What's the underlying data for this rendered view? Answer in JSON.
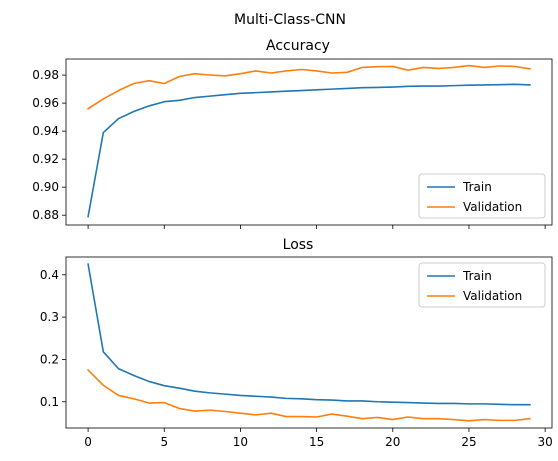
{
  "figure": {
    "suptitle": "Multi-Class-CNN"
  },
  "chart_data": [
    {
      "type": "line",
      "title": "Accuracy",
      "xlabel": "",
      "ylabel": "",
      "xlim": [
        -1.45,
        30.45
      ],
      "ylim": [
        0.873,
        0.9915
      ],
      "x": [
        0,
        1,
        2,
        3,
        4,
        5,
        6,
        7,
        8,
        9,
        10,
        11,
        12,
        13,
        14,
        15,
        16,
        17,
        18,
        19,
        20,
        21,
        22,
        23,
        24,
        25,
        26,
        27,
        28,
        29
      ],
      "xticks": [
        0,
        5,
        10,
        15,
        20,
        25,
        30
      ],
      "xtick_labels_visible": false,
      "yticks": [
        0.88,
        0.9,
        0.92,
        0.94,
        0.96,
        0.98
      ],
      "ytick_labels": [
        "0.88",
        "0.90",
        "0.92",
        "0.94",
        "0.96",
        "0.98"
      ],
      "legend_position": "lower-right",
      "grid": false,
      "series": [
        {
          "name": "Train",
          "color": "#1f77b4",
          "values": [
            0.879,
            0.939,
            0.949,
            0.954,
            0.958,
            0.961,
            0.962,
            0.964,
            0.965,
            0.966,
            0.967,
            0.9675,
            0.968,
            0.9685,
            0.969,
            0.9695,
            0.97,
            0.9705,
            0.971,
            0.9712,
            0.9715,
            0.972,
            0.9722,
            0.9722,
            0.9725,
            0.9728,
            0.973,
            0.9732,
            0.9734,
            0.973
          ]
        },
        {
          "name": "Validation",
          "color": "#ff7f0e",
          "values": [
            0.956,
            0.963,
            0.969,
            0.974,
            0.976,
            0.974,
            0.979,
            0.981,
            0.98,
            0.9795,
            0.981,
            0.983,
            0.9815,
            0.983,
            0.984,
            0.983,
            0.9815,
            0.982,
            0.9855,
            0.986,
            0.9862,
            0.9835,
            0.9855,
            0.9848,
            0.9855,
            0.9868,
            0.9855,
            0.9865,
            0.9862,
            0.9845
          ]
        }
      ]
    },
    {
      "type": "line",
      "title": "Loss",
      "xlabel": "",
      "ylabel": "",
      "xlim": [
        -1.45,
        30.45
      ],
      "ylim": [
        0.038,
        0.442
      ],
      "x": [
        0,
        1,
        2,
        3,
        4,
        5,
        6,
        7,
        8,
        9,
        10,
        11,
        12,
        13,
        14,
        15,
        16,
        17,
        18,
        19,
        20,
        21,
        22,
        23,
        24,
        25,
        26,
        27,
        28,
        29
      ],
      "xticks": [
        0,
        5,
        10,
        15,
        20,
        25,
        30
      ],
      "xtick_labels": [
        "0",
        "5",
        "10",
        "15",
        "20",
        "25",
        "30"
      ],
      "yticks": [
        0.1,
        0.2,
        0.3,
        0.4
      ],
      "ytick_labels": [
        "0.1",
        "0.2",
        "0.3",
        "0.4"
      ],
      "legend_position": "upper-right",
      "grid": false,
      "series": [
        {
          "name": "Train",
          "color": "#1f77b4",
          "values": [
            0.425,
            0.218,
            0.178,
            0.162,
            0.148,
            0.138,
            0.132,
            0.125,
            0.121,
            0.118,
            0.115,
            0.113,
            0.111,
            0.108,
            0.107,
            0.105,
            0.104,
            0.102,
            0.102,
            0.1,
            0.099,
            0.098,
            0.097,
            0.096,
            0.096,
            0.095,
            0.095,
            0.094,
            0.093,
            0.093
          ]
        },
        {
          "name": "Validation",
          "color": "#ff7f0e",
          "values": [
            0.175,
            0.139,
            0.115,
            0.107,
            0.097,
            0.098,
            0.084,
            0.078,
            0.08,
            0.077,
            0.073,
            0.069,
            0.073,
            0.065,
            0.065,
            0.064,
            0.071,
            0.066,
            0.06,
            0.063,
            0.058,
            0.064,
            0.06,
            0.06,
            0.058,
            0.055,
            0.058,
            0.056,
            0.056,
            0.06
          ]
        }
      ]
    }
  ]
}
